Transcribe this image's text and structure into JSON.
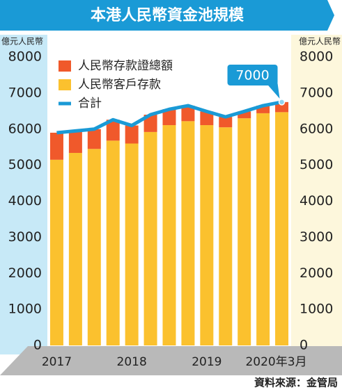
{
  "chart_data": {
    "type": "bar",
    "title": "本港人民幣資金池規模",
    "y_label": "億元人民幣",
    "y2_label": "億元人民幣",
    "source": "資料來源：金管局",
    "annotation": "7000",
    "categories": [
      "2017",
      null,
      null,
      null,
      "2018",
      null,
      null,
      null,
      "2019",
      null,
      null,
      null,
      "2020年3月"
    ],
    "series": [
      {
        "name": "人民幣存款證總額",
        "color": "#f0592b",
        "stack": true,
        "values": [
          750,
          610,
          550,
          580,
          500,
          480,
          440,
          430,
          380,
          290,
          190,
          210,
          280
        ]
      },
      {
        "name": "人民幣客戶存款",
        "color": "#fbc12e",
        "stack": true,
        "values": [
          5150,
          5340,
          5450,
          5680,
          5600,
          5920,
          6110,
          6220,
          6110,
          6050,
          6300,
          6440,
          6470
        ]
      },
      {
        "name": "合計",
        "color": "#1a9ad6",
        "type": "line",
        "values": [
          5900,
          5950,
          6000,
          6260,
          6100,
          6400,
          6550,
          6650,
          6490,
          6340,
          6490,
          6650,
          6750
        ]
      }
    ],
    "ylim": [
      0,
      8000
    ],
    "yticks": [
      0,
      1000,
      2000,
      3000,
      4000,
      5000,
      6000,
      7000,
      8000
    ]
  }
}
